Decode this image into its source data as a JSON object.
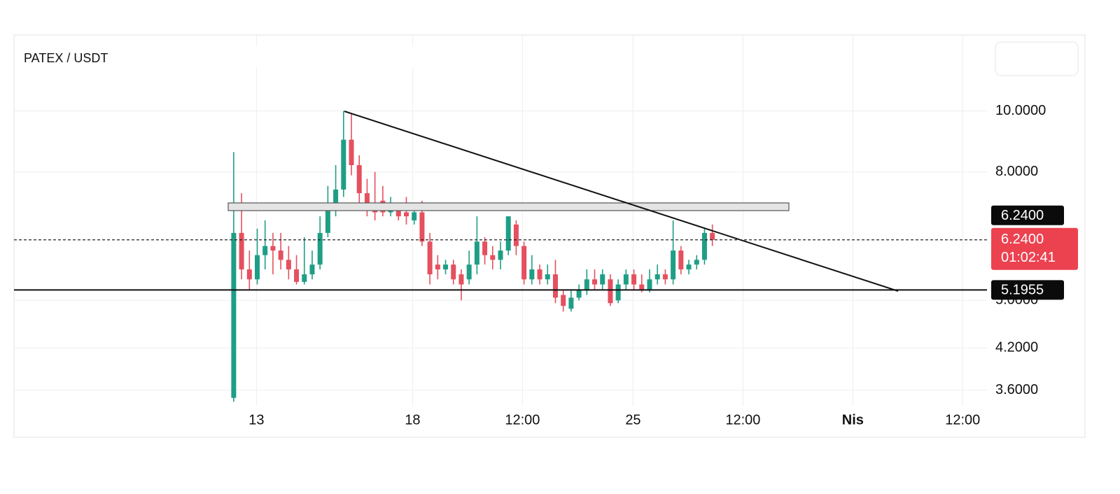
{
  "chart_data": {
    "type": "candlestick",
    "title": "PATEX / USDT",
    "log_scale": true,
    "grid": true,
    "up_color": "#1f9e86",
    "down_color": "#e5505f",
    "x": [
      0,
      1,
      2,
      3,
      4,
      5,
      6,
      7,
      8,
      9,
      10,
      11,
      12,
      13,
      14,
      15,
      16,
      17,
      18,
      19,
      20,
      21,
      22,
      23,
      24,
      25,
      26,
      27,
      28,
      29,
      30,
      31,
      32,
      33,
      34,
      35,
      36,
      37,
      38,
      39,
      40,
      41,
      42,
      43,
      44,
      45,
      46,
      47,
      48,
      49,
      50,
      51,
      52,
      53,
      54,
      55,
      56,
      57,
      58,
      59,
      60,
      61
    ],
    "open": [
      3.5,
      6.4,
      5.6,
      5.4,
      5.9,
      6.1,
      6.0,
      5.8,
      5.6,
      5.35,
      5.5,
      5.7,
      6.4,
      7.0,
      7.5,
      9.0,
      8.2,
      7.4,
      7.0,
      7.2,
      6.9,
      7.0,
      6.9,
      6.7,
      6.9,
      6.2,
      5.7,
      5.6,
      5.7,
      5.5,
      5.4,
      5.7,
      6.2,
      5.9,
      5.8,
      6.0,
      6.6,
      6.1,
      5.4,
      5.6,
      5.4,
      5.5,
      5.1,
      4.85,
      5.05,
      5.2,
      5.4,
      5.3,
      5.4,
      5.0,
      5.3,
      5.5,
      5.3,
      5.2,
      5.4,
      5.5,
      5.4,
      6.0,
      5.6,
      5.7,
      5.8,
      6.4
    ],
    "high": [
      8.6,
      7.4,
      6.0,
      6.5,
      6.7,
      6.4,
      6.4,
      6.1,
      5.9,
      6.3,
      6.0,
      6.8,
      7.6,
      8.2,
      10.0,
      9.9,
      8.5,
      7.8,
      8.0,
      7.6,
      7.3,
      7.1,
      7.3,
      7.1,
      7.2,
      6.4,
      5.9,
      5.8,
      5.8,
      5.6,
      6.0,
      6.8,
      6.3,
      6.1,
      6.2,
      6.8,
      6.7,
      6.2,
      5.9,
      5.7,
      5.7,
      5.8,
      5.2,
      5.2,
      5.3,
      5.6,
      5.6,
      5.6,
      5.5,
      5.4,
      5.6,
      5.6,
      5.5,
      5.6,
      5.7,
      5.6,
      6.7,
      6.1,
      5.8,
      5.9,
      6.5,
      6.6
    ],
    "low": [
      3.45,
      5.4,
      5.2,
      5.3,
      5.6,
      5.5,
      5.6,
      5.4,
      5.3,
      5.3,
      5.4,
      5.6,
      6.3,
      6.8,
      7.3,
      7.9,
      7.0,
      6.8,
      6.7,
      6.8,
      6.8,
      6.7,
      6.6,
      6.6,
      6.1,
      5.3,
      5.4,
      5.5,
      5.3,
      5.0,
      5.3,
      5.5,
      5.7,
      5.6,
      5.6,
      5.9,
      5.9,
      5.3,
      5.3,
      5.3,
      5.3,
      4.95,
      4.8,
      4.8,
      5.0,
      5.1,
      5.2,
      5.2,
      4.9,
      4.95,
      5.2,
      5.2,
      5.15,
      5.15,
      5.3,
      5.3,
      5.3,
      5.5,
      5.5,
      5.6,
      5.7,
      6.1
    ],
    "close": [
      6.4,
      5.6,
      5.4,
      5.9,
      6.1,
      6.0,
      5.8,
      5.6,
      5.35,
      5.5,
      5.7,
      6.4,
      7.0,
      7.5,
      9.0,
      8.2,
      7.4,
      7.0,
      6.9,
      6.9,
      7.0,
      6.8,
      6.8,
      6.9,
      6.2,
      5.5,
      5.6,
      5.7,
      5.4,
      5.3,
      5.7,
      6.2,
      5.9,
      5.8,
      6.0,
      6.8,
      6.1,
      5.4,
      5.6,
      5.4,
      5.5,
      5.05,
      4.9,
      5.05,
      5.2,
      5.4,
      5.3,
      5.5,
      4.95,
      5.3,
      5.5,
      5.3,
      5.2,
      5.4,
      5.5,
      5.4,
      6.0,
      5.6,
      5.7,
      5.8,
      6.4,
      6.24
    ],
    "xlim": [
      -28,
      96
    ],
    "ylim": [
      3.4,
      13.2
    ],
    "xticks": [
      {
        "value": 2.9,
        "label": "13"
      },
      {
        "value": 22.8,
        "label": "18"
      },
      {
        "value": 36.8,
        "label": "12:00"
      },
      {
        "value": 50.9,
        "label": "25"
      },
      {
        "value": 64.9,
        "label": "12:00"
      },
      {
        "value": 78.9,
        "label": "Nis"
      },
      {
        "value": 92.9,
        "label": "12:00"
      }
    ],
    "yticks": [
      {
        "value": 10,
        "label": "10.0000"
      },
      {
        "value": 8,
        "label": "8.0000"
      },
      {
        "value": 5,
        "label": "5.0000"
      },
      {
        "value": 4.2,
        "label": "4.2000"
      },
      {
        "value": 3.6,
        "label": "3.6000"
      }
    ],
    "last_price": {
      "value": 6.24,
      "label": "6.2400"
    },
    "countdown": "01:02:41",
    "support": 5.1955
  }
}
